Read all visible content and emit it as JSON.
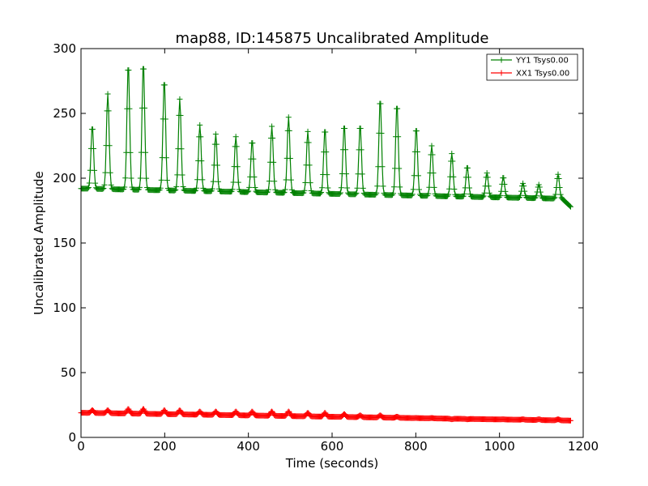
{
  "chart_data": {
    "type": "line",
    "title": "map88, ID:145875 Uncalibrated Amplitude",
    "xlabel": "Time (seconds)",
    "ylabel": "Uncalibrated Amplitude",
    "xlim": [
      0,
      1200
    ],
    "ylim": [
      0,
      300
    ],
    "xticks": [
      0,
      200,
      400,
      600,
      800,
      1000,
      1200
    ],
    "yticks": [
      0,
      50,
      100,
      150,
      200,
      250,
      300
    ],
    "legend_position": "top-right",
    "marker": "+",
    "series": [
      {
        "name": "YY1 Tsys0.00",
        "color": "#008000",
        "time_range": [
          0,
          1170
        ],
        "sample_interval": 2,
        "baseline_start": 192,
        "baseline_end": 184,
        "end_value": 178,
        "peaks": [
          {
            "t": 27,
            "v": 240
          },
          {
            "t": 64,
            "v": 265
          },
          {
            "t": 113,
            "v": 288
          },
          {
            "t": 149,
            "v": 289
          },
          {
            "t": 199,
            "v": 276
          },
          {
            "t": 236,
            "v": 261
          },
          {
            "t": 284,
            "v": 241
          },
          {
            "t": 322,
            "v": 234
          },
          {
            "t": 370,
            "v": 232
          },
          {
            "t": 409,
            "v": 229
          },
          {
            "t": 456,
            "v": 240
          },
          {
            "t": 496,
            "v": 247
          },
          {
            "t": 542,
            "v": 236
          },
          {
            "t": 583,
            "v": 238
          },
          {
            "t": 629,
            "v": 241
          },
          {
            "t": 667,
            "v": 241
          },
          {
            "t": 715,
            "v": 261
          },
          {
            "t": 755,
            "v": 257
          },
          {
            "t": 801,
            "v": 239
          },
          {
            "t": 838,
            "v": 225
          },
          {
            "t": 886,
            "v": 219
          },
          {
            "t": 923,
            "v": 209
          },
          {
            "t": 970,
            "v": 204
          },
          {
            "t": 1009,
            "v": 201
          },
          {
            "t": 1056,
            "v": 196
          },
          {
            "t": 1094,
            "v": 195
          },
          {
            "t": 1140,
            "v": 203
          }
        ]
      },
      {
        "name": "XX1 Tsys0.00",
        "color": "#ff0000",
        "time_range": [
          0,
          1170
        ],
        "sample_interval": 2,
        "baseline_start": 19,
        "baseline_end": 13,
        "end_value": 13,
        "peaks": [
          {
            "t": 27,
            "v": 21
          },
          {
            "t": 64,
            "v": 21
          },
          {
            "t": 113,
            "v": 22
          },
          {
            "t": 149,
            "v": 22
          },
          {
            "t": 199,
            "v": 21
          },
          {
            "t": 236,
            "v": 21
          },
          {
            "t": 284,
            "v": 20
          },
          {
            "t": 322,
            "v": 20
          },
          {
            "t": 370,
            "v": 20
          },
          {
            "t": 409,
            "v": 20
          },
          {
            "t": 456,
            "v": 20
          },
          {
            "t": 496,
            "v": 20
          },
          {
            "t": 542,
            "v": 19
          },
          {
            "t": 583,
            "v": 19
          },
          {
            "t": 629,
            "v": 18
          },
          {
            "t": 667,
            "v": 17
          },
          {
            "t": 715,
            "v": 17
          },
          {
            "t": 755,
            "v": 16
          },
          {
            "t": 801,
            "v": 15
          },
          {
            "t": 838,
            "v": 15
          },
          {
            "t": 886,
            "v": 14
          },
          {
            "t": 923,
            "v": 14
          },
          {
            "t": 970,
            "v": 14
          },
          {
            "t": 1009,
            "v": 14
          },
          {
            "t": 1056,
            "v": 14
          },
          {
            "t": 1094,
            "v": 14
          },
          {
            "t": 1140,
            "v": 14
          }
        ]
      }
    ]
  }
}
